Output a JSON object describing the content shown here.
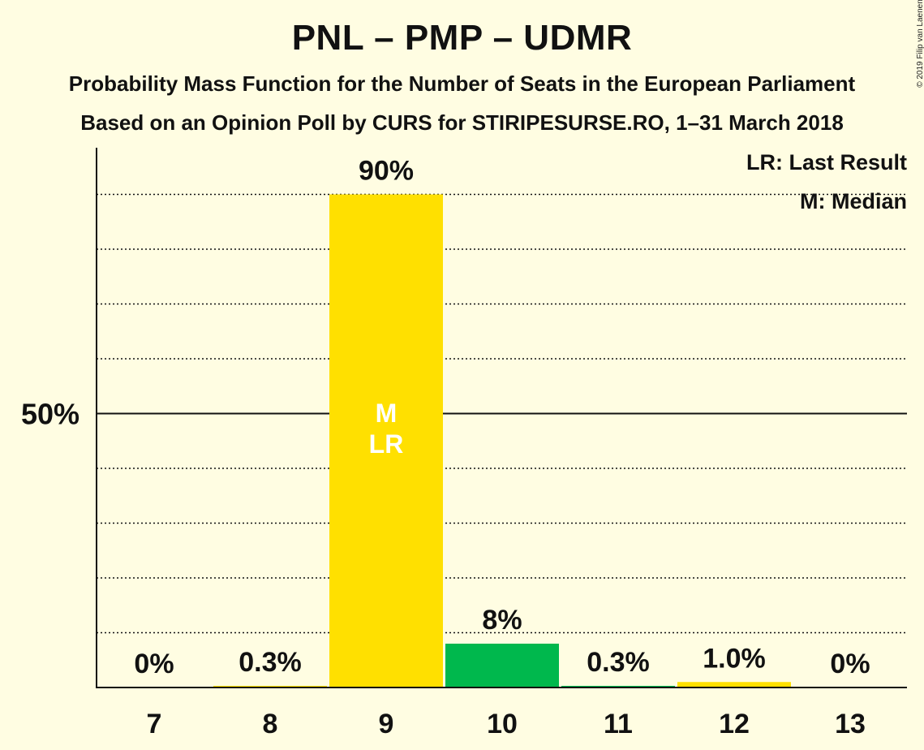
{
  "title": "PNL – PMP – UDMR",
  "subtitle1": "Probability Mass Function for the Number of Seats in the European Parliament",
  "subtitle2": "Based on an Opinion Poll by CURS for STIRIPESURSE.RO, 1–31 March 2018",
  "copyright": "© 2019 Filip van Laenen",
  "legend": {
    "last_result": "LR: Last Result",
    "median": "M: Median"
  },
  "colors": {
    "background": "#FFFDE2",
    "yellow": "#FFE000",
    "green": "#00B84D",
    "axis": "#111111"
  },
  "chart_data": {
    "type": "bar",
    "categories": [
      "7",
      "8",
      "9",
      "10",
      "11",
      "12",
      "13"
    ],
    "values": [
      0,
      0.3,
      90,
      8,
      0.3,
      1.0,
      0
    ],
    "value_labels": [
      "0%",
      "0.3%",
      "90%",
      "8%",
      "0.3%",
      "1.0%",
      "0%"
    ],
    "bar_colors": [
      "#FFE000",
      "#FFE000",
      "#FFE000",
      "#00B84D",
      "#00B84D",
      "#FFE000",
      "#FFE000"
    ],
    "ylim": [
      0,
      100
    ],
    "y_tick_label": "50%",
    "y_tick_value": 50,
    "gridlines": [
      10,
      20,
      30,
      40,
      60,
      70,
      80,
      90
    ],
    "median_category": "9",
    "last_result_category": "9",
    "median_mark": "M",
    "last_result_mark": "LR",
    "legend_position": "top-right",
    "title": "PNL – PMP – UDMR",
    "xlabel": "",
    "ylabel": ""
  }
}
